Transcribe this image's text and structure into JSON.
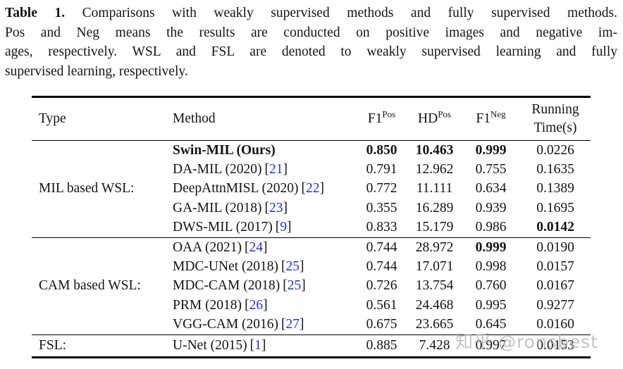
{
  "caption": {
    "label": "Table 1.",
    "line1_rest": " Comparisons with weakly supervised methods and fully supervised methods.",
    "line2": "Pos and Neg means the results are conducted on positive images and negative im-",
    "line3": "ages, respectively. WSL and FSL are denoted to weakly supervised learning and fully",
    "line4": "supervised learning, respectively."
  },
  "table": {
    "headers": {
      "type": "Type",
      "method": "Method",
      "f1": "F1",
      "hd": "HD",
      "pos": "Pos",
      "neg": "Neg",
      "running_line1": "Running",
      "running_line2": "Time(s)"
    },
    "punct": {
      "lb": "[",
      "rb": "]"
    },
    "groups": [
      {
        "type": "MIL based WSL:",
        "rows": [
          {
            "method": "Swin-MIL (Ours)",
            "cite": "",
            "f1pos": "0.850",
            "hd": "10.463",
            "f1neg": "0.999",
            "time": "0.0226"
          },
          {
            "method": "DA-MIL (2020)",
            "cite": "21",
            "f1pos": "0.791",
            "hd": "12.962",
            "f1neg": "0.755",
            "time": "0.1635"
          },
          {
            "method": "DeepAttnMISL (2020)",
            "cite": "22",
            "f1pos": "0.772",
            "hd": "11.111",
            "f1neg": "0.634",
            "time": "0.1389"
          },
          {
            "method": "GA-MIL (2018)",
            "cite": "23",
            "f1pos": "0.355",
            "hd": "16.289",
            "f1neg": "0.939",
            "time": "0.1695"
          },
          {
            "method": "DWS-MIL (2017)",
            "cite": "9",
            "f1pos": "0.833",
            "hd": "15.179",
            "f1neg": "0.986",
            "time": "0.0142"
          }
        ]
      },
      {
        "type": "CAM based WSL:",
        "rows": [
          {
            "method": "OAA (2021)",
            "cite": "24",
            "f1pos": "0.744",
            "hd": "28.972",
            "f1neg": "0.999",
            "time": "0.0190"
          },
          {
            "method": "MDC-UNet (2018)",
            "cite": "25",
            "f1pos": "0.744",
            "hd": "17.071",
            "f1neg": "0.998",
            "time": "0.0157"
          },
          {
            "method": "MDC-CAM (2018)",
            "cite": "25",
            "f1pos": "0.726",
            "hd": "13.754",
            "f1neg": "0.760",
            "time": "0.0167"
          },
          {
            "method": "PRM (2018)",
            "cite": "26",
            "f1pos": "0.561",
            "hd": "24.468",
            "f1neg": "0.995",
            "time": "0.9277"
          },
          {
            "method": "VGG-CAM (2016)",
            "cite": "27",
            "f1pos": "0.675",
            "hd": "23.665",
            "f1neg": "0.645",
            "time": "0.0160"
          }
        ]
      },
      {
        "type": "FSL:",
        "rows": [
          {
            "method": "U-Net (2015)",
            "cite": "1",
            "f1pos": "0.885",
            "hd": "7.428",
            "f1neg": "0.997",
            "time": "0.0153"
          }
        ]
      }
    ]
  },
  "watermark": {
    "text": "知乎 @ronsbest"
  },
  "colors": {
    "citation_blue": "#2433d0",
    "rule_black": "#000000",
    "watermark_gray": "#afafaf"
  }
}
